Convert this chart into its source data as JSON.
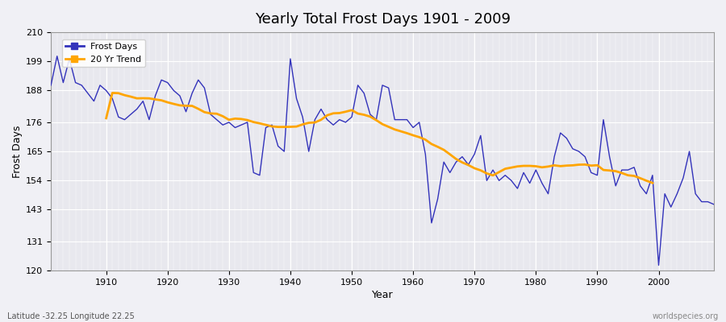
{
  "title": "Yearly Total Frost Days 1901 - 2009",
  "xlabel": "Year",
  "ylabel": "Frost Days",
  "lat_lon_label": "Latitude -32.25 Longitude 22.25",
  "source_label": "worldspecies.org",
  "line_color": "#3333bb",
  "trend_color": "#FFA500",
  "bg_color": "#f0f0f5",
  "plot_bg_color": "#e8e8ee",
  "ylim": [
    120,
    210
  ],
  "yticks": [
    120,
    131,
    143,
    154,
    165,
    176,
    188,
    199,
    210
  ],
  "years": [
    1901,
    1902,
    1903,
    1904,
    1905,
    1906,
    1907,
    1908,
    1909,
    1910,
    1911,
    1912,
    1913,
    1914,
    1915,
    1916,
    1917,
    1918,
    1919,
    1920,
    1921,
    1922,
    1923,
    1924,
    1925,
    1926,
    1927,
    1928,
    1929,
    1930,
    1931,
    1932,
    1933,
    1934,
    1935,
    1936,
    1937,
    1938,
    1939,
    1940,
    1941,
    1942,
    1943,
    1944,
    1945,
    1946,
    1947,
    1948,
    1949,
    1950,
    1951,
    1952,
    1953,
    1954,
    1955,
    1956,
    1957,
    1958,
    1959,
    1960,
    1961,
    1962,
    1963,
    1964,
    1965,
    1966,
    1967,
    1968,
    1969,
    1970,
    1971,
    1972,
    1973,
    1974,
    1975,
    1976,
    1977,
    1978,
    1979,
    1980,
    1981,
    1982,
    1983,
    1984,
    1985,
    1986,
    1987,
    1988,
    1989,
    1990,
    1991,
    1992,
    1993,
    1994,
    1995,
    1996,
    1997,
    1998,
    1999,
    2000,
    2001,
    2002,
    2003,
    2004,
    2005,
    2006,
    2007,
    2008,
    2009
  ],
  "frost_days": [
    190,
    201,
    191,
    200,
    191,
    190,
    187,
    184,
    190,
    188,
    185,
    178,
    177,
    179,
    181,
    184,
    177,
    186,
    192,
    191,
    188,
    186,
    180,
    187,
    192,
    189,
    179,
    177,
    175,
    176,
    174,
    175,
    176,
    157,
    156,
    174,
    175,
    167,
    165,
    200,
    185,
    178,
    165,
    177,
    181,
    177,
    175,
    177,
    176,
    178,
    190,
    187,
    179,
    177,
    190,
    189,
    177,
    177,
    177,
    174,
    176,
    164,
    138,
    147,
    161,
    157,
    161,
    163,
    160,
    164,
    171,
    154,
    158,
    154,
    156,
    154,
    151,
    157,
    153,
    158,
    153,
    149,
    163,
    172,
    170,
    166,
    165,
    163,
    157,
    156,
    177,
    163,
    152,
    158,
    158,
    159,
    152,
    149,
    156,
    122,
    149,
    144,
    149,
    155,
    165,
    149,
    146,
    146,
    145
  ],
  "trend_window": 20
}
